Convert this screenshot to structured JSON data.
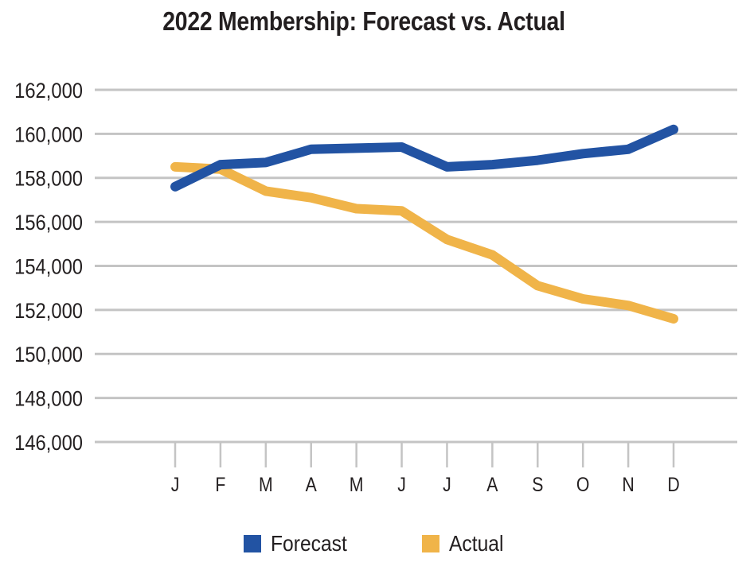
{
  "chart_data": {
    "type": "line",
    "title": "2022 Membership: Forecast vs. Actual",
    "xlabel": "",
    "ylabel": "",
    "categories": [
      "J",
      "F",
      "M",
      "A",
      "M",
      "J",
      "J",
      "A",
      "S",
      "O",
      "N",
      "D"
    ],
    "ylim": [
      146000,
      162000
    ],
    "yticks": [
      146000,
      148000,
      150000,
      152000,
      154000,
      156000,
      158000,
      160000,
      162000
    ],
    "ytick_labels": [
      "146,000",
      "148,000",
      "150,000",
      "152,000",
      "154,000",
      "156,000",
      "158,000",
      "160,000",
      "162,000"
    ],
    "grid": true,
    "legend_position": "bottom",
    "series": [
      {
        "name": "Forecast",
        "color": "#2253A3",
        "values": [
          157600,
          158600,
          158700,
          159300,
          159350,
          159400,
          158500,
          158600,
          158800,
          159100,
          159300,
          160200
        ]
      },
      {
        "name": "Actual",
        "color": "#F0B449",
        "values": [
          158500,
          158400,
          157400,
          157100,
          156600,
          156500,
          155200,
          154500,
          153100,
          152500,
          152200,
          151600
        ]
      }
    ]
  },
  "colors": {
    "grid": "#c4c4c4",
    "text": "#231f20"
  }
}
